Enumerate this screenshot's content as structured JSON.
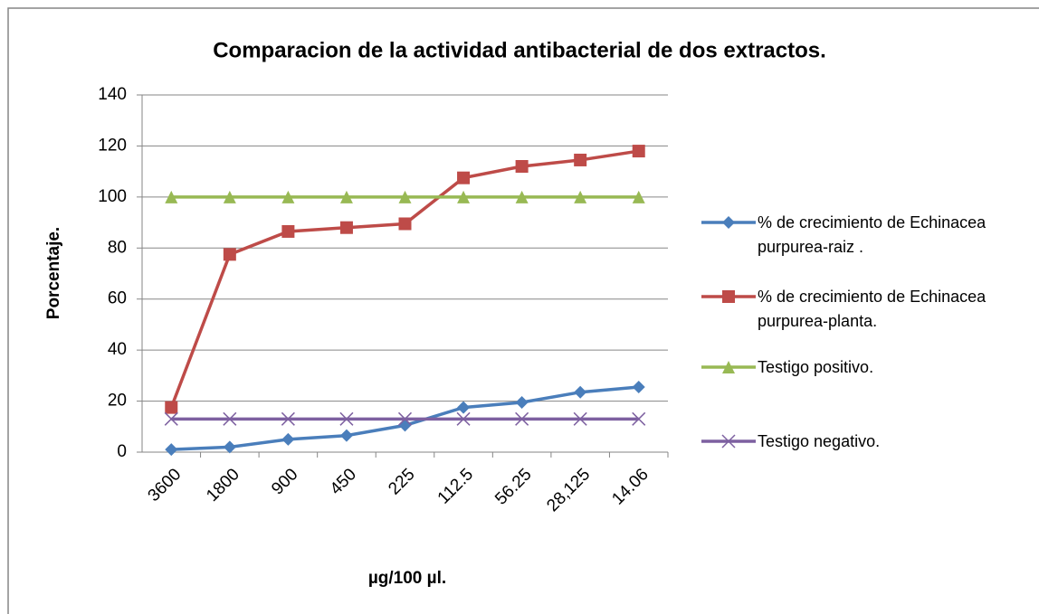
{
  "chart_data": {
    "type": "line",
    "title": "Comparacion de la actividad antibacterial de dos extractos.",
    "y_label": "Porcentaje.",
    "x_label": "µg/100 µl.",
    "categories": [
      "3600",
      "1800",
      "900",
      "450",
      "225",
      "112.5",
      "56.25",
      "28,125",
      "14.06"
    ],
    "series": [
      {
        "name": "% de crecimiento de Echinacea purpurea-raiz .",
        "color": "#4a7ebb",
        "marker": "diamond",
        "values": [
          1,
          2,
          5,
          6.5,
          10.5,
          17.5,
          19.5,
          23.5,
          25.5
        ]
      },
      {
        "name": "% de crecimiento de Echinacea purpurea-planta.",
        "color": "#be4b48",
        "marker": "square",
        "values": [
          17.5,
          77.5,
          86.5,
          88,
          89.5,
          107.5,
          112,
          114.5,
          118
        ]
      },
      {
        "name": "Testigo positivo.",
        "color": "#98b954",
        "marker": "triangle",
        "values": [
          100,
          100,
          100,
          100,
          100,
          100,
          100,
          100,
          100
        ]
      },
      {
        "name": "Testigo negativo.",
        "color": "#7d60a0",
        "marker": "x",
        "values": [
          13,
          13,
          13,
          13,
          13,
          13,
          13,
          13,
          13
        ]
      }
    ],
    "ylim": [
      0,
      140
    ],
    "yticks": [
      0,
      20,
      40,
      60,
      80,
      100,
      120,
      140
    ],
    "grid": true,
    "legend": "right"
  }
}
